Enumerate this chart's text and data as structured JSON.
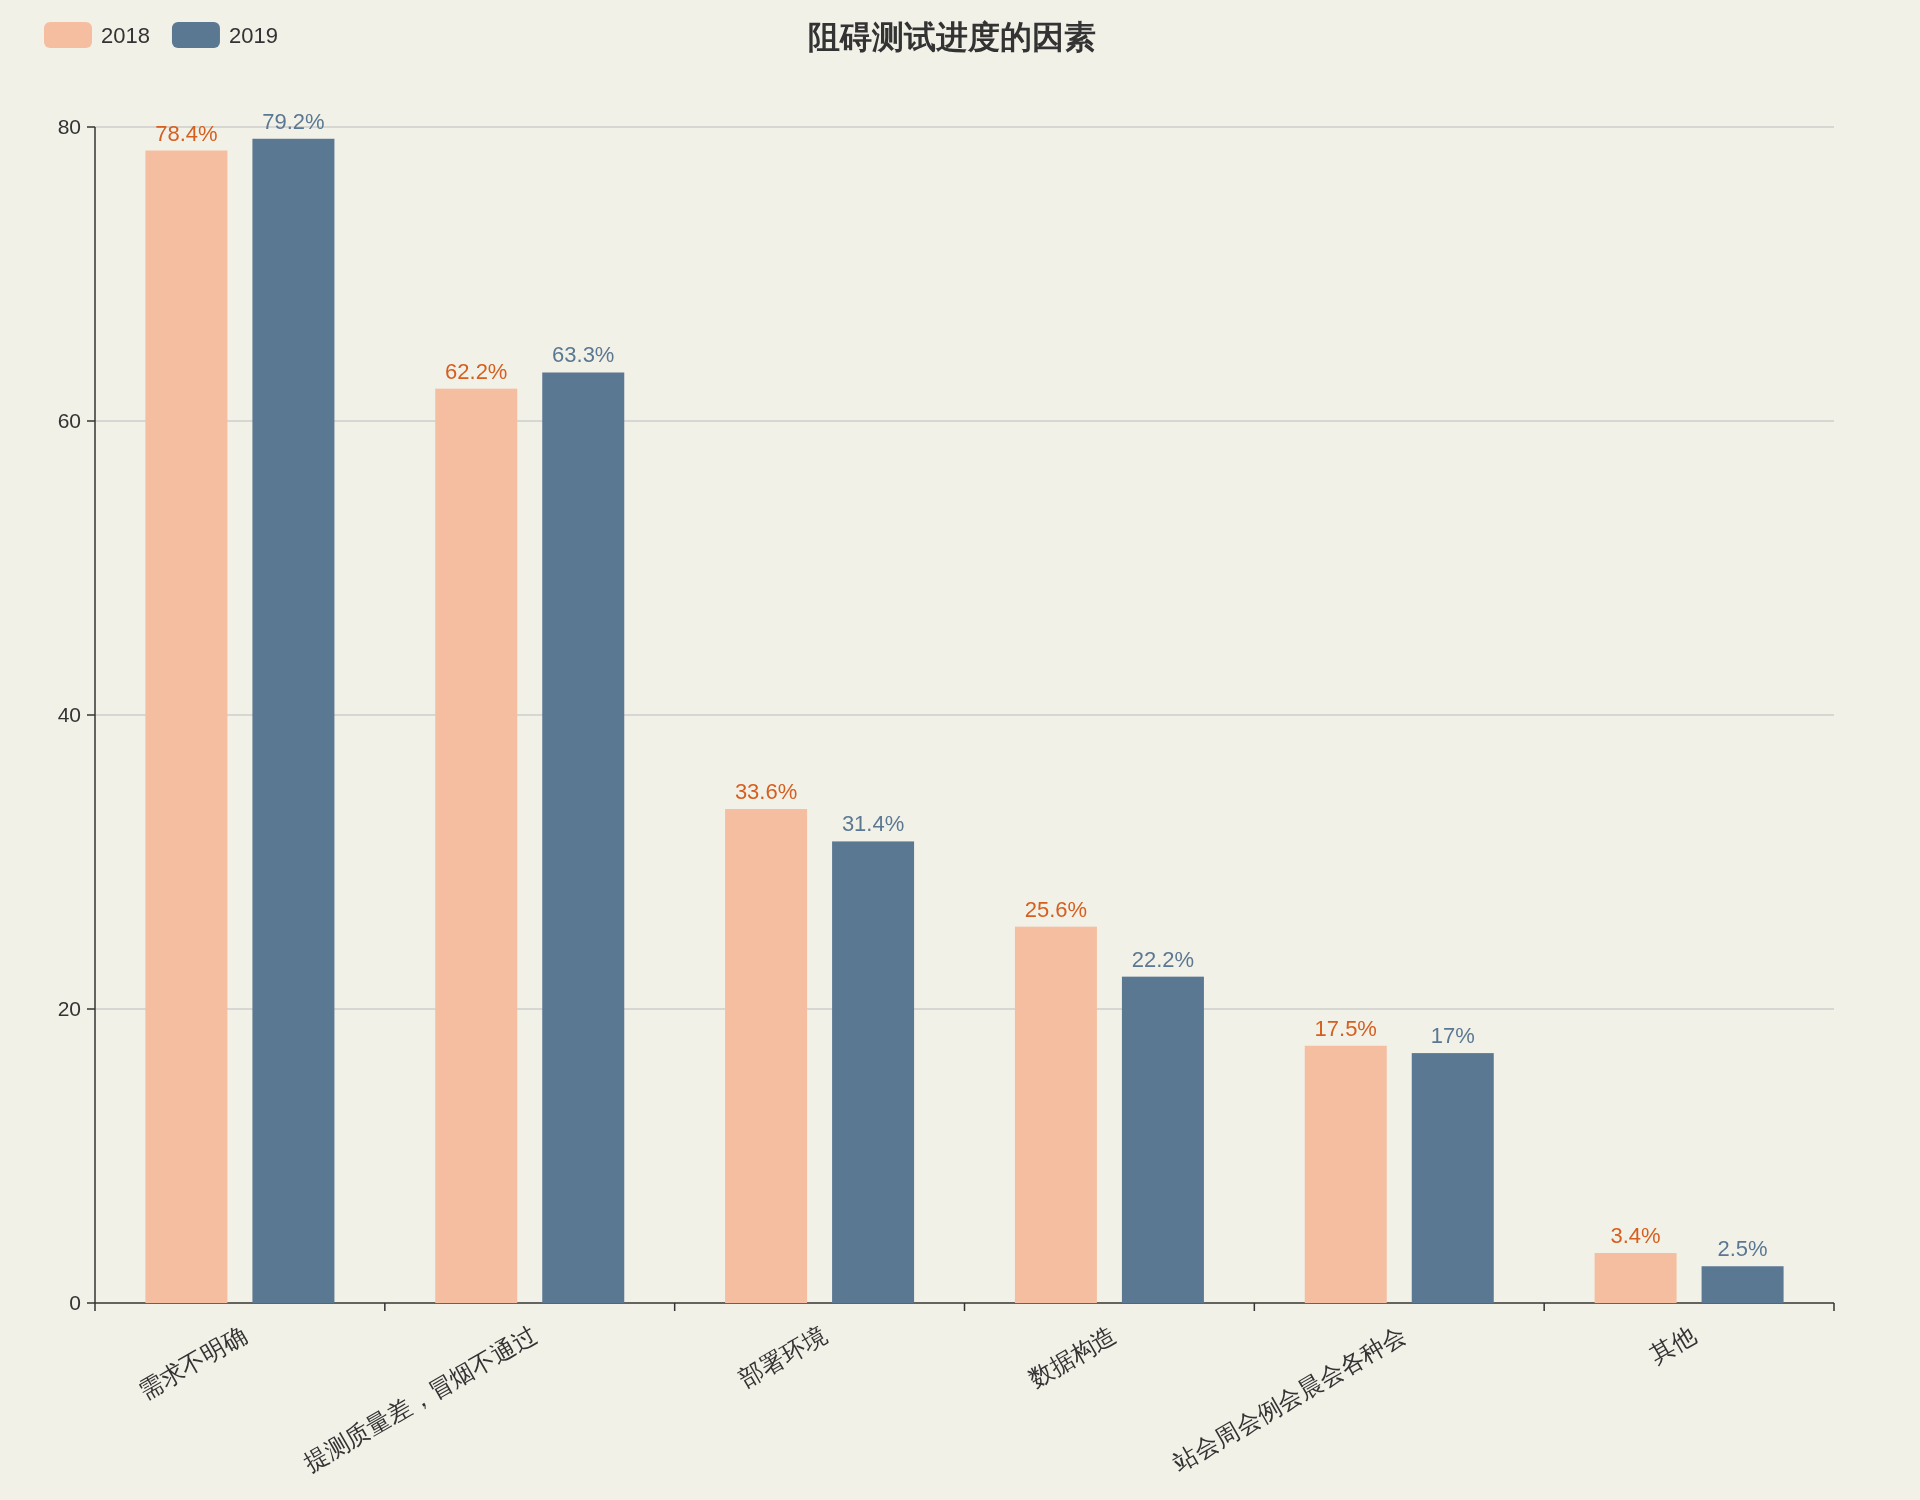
{
  "chart_data": {
    "type": "bar",
    "title": "阻碍测试进度的因素",
    "categories": [
      "需求不明确",
      "提测质量差，冒烟不通过",
      "部署环境",
      "数据构造",
      "站会周会例会晨会各种会",
      "其他"
    ],
    "series": [
      {
        "name": "2018",
        "color": "#f5bea0",
        "values": [
          78.4,
          62.2,
          33.6,
          25.6,
          17.5,
          3.4
        ],
        "value_labels": [
          "78.4%",
          "62.2%",
          "33.6%",
          "25.6%",
          "17.5%",
          "3.4%"
        ]
      },
      {
        "name": "2019",
        "color": "#5b7892",
        "values": [
          79.2,
          63.3,
          31.4,
          22.2,
          17,
          2.5
        ],
        "value_labels": [
          "79.2%",
          "63.3%",
          "31.4%",
          "22.2%",
          "17%",
          "2.5%"
        ]
      }
    ],
    "ylim": [
      0,
      80
    ],
    "yticks": [
      0,
      20,
      40,
      60,
      80
    ],
    "grid": "y",
    "legend": "top left"
  }
}
